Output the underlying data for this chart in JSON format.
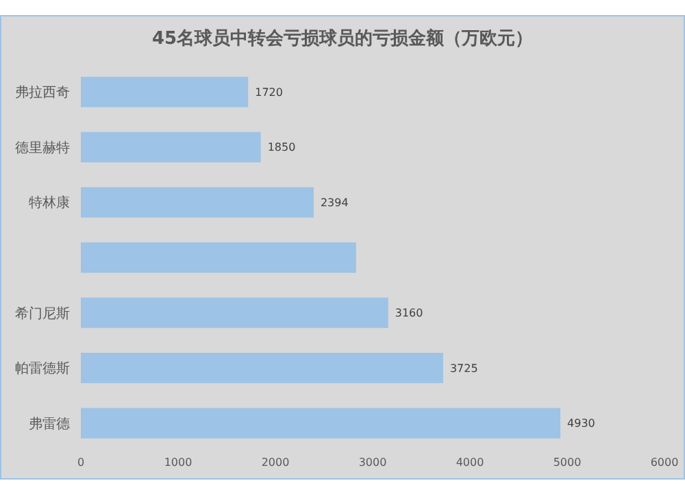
{
  "chart_data": {
    "type": "bar",
    "orientation": "horizontal",
    "title": "45名球员中转会亏损球员的亏损金额（万欧元）",
    "categories": [
      "弗拉西奇",
      "德里赫特",
      "特林康",
      null,
      "希门尼斯",
      "帕雷德斯",
      "弗雷德"
    ],
    "values": [
      1720,
      1850,
      2394,
      2830,
      3160,
      3725,
      4930
    ],
    "value_labels": [
      "1720",
      "1850",
      "2394",
      null,
      "3160",
      "3725",
      "4930"
    ],
    "color": "#9dc3e6",
    "xlim": [
      0,
      6000
    ],
    "xticks": [
      0,
      1000,
      2000,
      3000,
      4000,
      5000,
      6000
    ],
    "grid": false
  }
}
